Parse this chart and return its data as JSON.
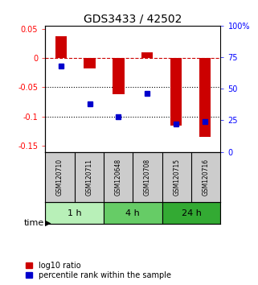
{
  "title": "GDS3433 / 42502",
  "samples": [
    "GSM120710",
    "GSM120711",
    "GSM120648",
    "GSM120708",
    "GSM120715",
    "GSM120716"
  ],
  "log10_ratio": [
    0.037,
    -0.018,
    -0.062,
    0.01,
    -0.115,
    -0.135
  ],
  "percentile_rank": [
    68,
    38,
    28,
    46,
    22,
    24
  ],
  "groups": [
    {
      "label": "1 h",
      "indices": [
        0,
        1
      ],
      "color": "#b8f0b8"
    },
    {
      "label": "4 h",
      "indices": [
        2,
        3
      ],
      "color": "#66cc66"
    },
    {
      "label": "24 h",
      "indices": [
        4,
        5
      ],
      "color": "#33aa33"
    }
  ],
  "ylim_left": [
    -0.16,
    0.055
  ],
  "ylim_right": [
    0,
    100
  ],
  "left_ticks": [
    0.05,
    0.0,
    -0.05,
    -0.1,
    -0.15
  ],
  "right_ticks": [
    100,
    75,
    50,
    25,
    0
  ],
  "bar_color": "#cc0000",
  "dot_color": "#0000cc",
  "zero_line_color": "#cc0000",
  "dotted_line_color": "#000000",
  "bg_color": "#ffffff",
  "sample_box_color": "#cccccc",
  "title_fontsize": 10,
  "tick_fontsize": 7,
  "label_fontsize": 8,
  "legend_fontsize": 7,
  "sample_fontsize": 5.5
}
